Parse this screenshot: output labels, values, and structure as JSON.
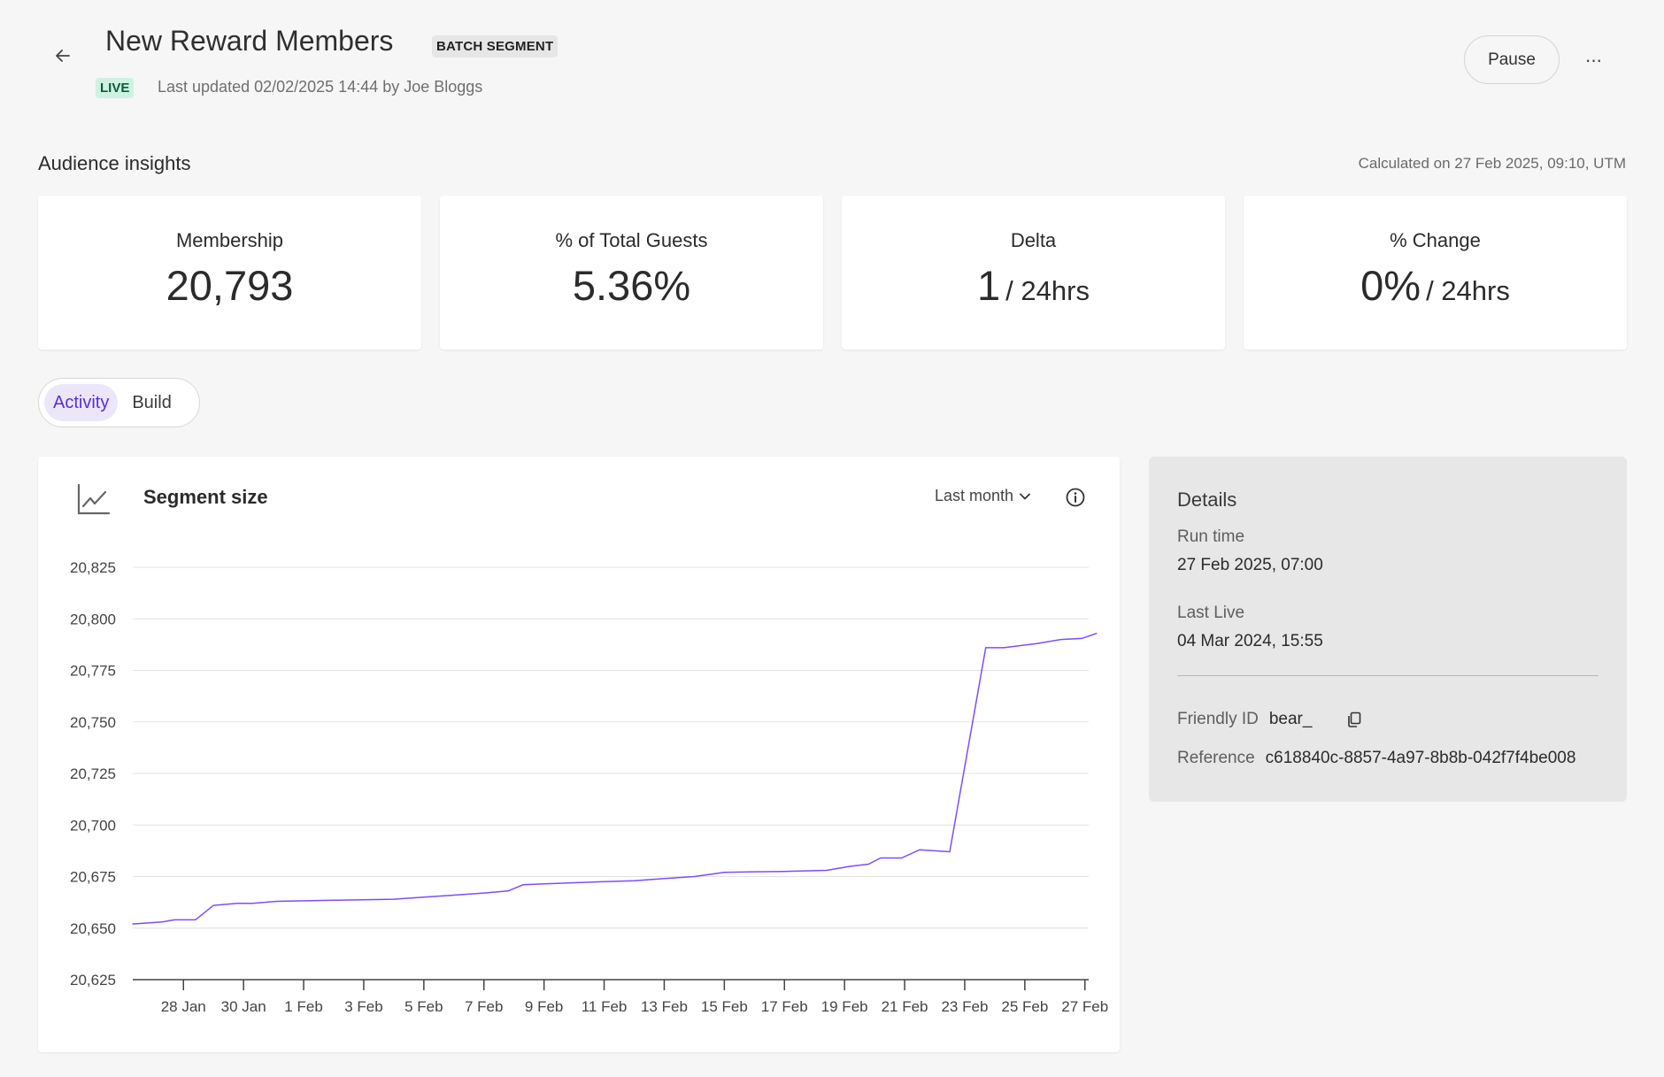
{
  "header": {
    "title": "New Reward Members",
    "type_badge": "BATCH SEGMENT",
    "status_badge": "LIVE",
    "last_updated": "Last updated 02/02/2025 14:44 by Joe Bloggs",
    "pause_label": "Pause",
    "more_label": "···"
  },
  "insights": {
    "title": "Audience insights",
    "calculated_note": "Calculated on 27 Feb 2025, 09:10, UTM",
    "cards": [
      {
        "label": "Membership",
        "value": "20,793",
        "suffix": ""
      },
      {
        "label": "% of Total Guests",
        "value": "5.36%",
        "suffix": ""
      },
      {
        "label": "Delta",
        "value": "1",
        "suffix": "/ 24hrs"
      },
      {
        "label": "% Change",
        "value": "0%",
        "suffix": "/ 24hrs"
      }
    ]
  },
  "tabs": [
    {
      "label": "Activity",
      "active": true
    },
    {
      "label": "Build",
      "active": false
    }
  ],
  "chart": {
    "title": "Segment size",
    "range_label": "Last month"
  },
  "details": {
    "title": "Details",
    "run_time_label": "Run time",
    "run_time_value": "27 Feb 2025, 07:00",
    "last_live_label": "Last Live",
    "last_live_value": "04 Mar 2024, 15:55",
    "friendly_id_label": "Friendly ID",
    "friendly_id_value": "bear_",
    "reference_label": "Reference",
    "reference_value": "c618840c-8857-4a97-8b8b-042f7f4be008"
  },
  "colors": {
    "accent": "#7c4dff",
    "live_bg": "#cdf2e2",
    "active_tab_bg": "#ece6fb",
    "active_tab_text": "#5a2fd1"
  },
  "chart_data": {
    "type": "line",
    "title": "Segment size",
    "xlabel": "",
    "ylabel": "",
    "ylim": [
      20625,
      20825
    ],
    "yticks": [
      20625,
      20650,
      20675,
      20700,
      20725,
      20750,
      20775,
      20800,
      20825
    ],
    "ytick_labels": [
      "20,625",
      "20,650",
      "20,675",
      "20,700",
      "20,725",
      "20,750",
      "20,775",
      "20,800",
      "20,825"
    ],
    "x_start": "2025-01-27",
    "xtick_labels": [
      "28 Jan",
      "30 Jan",
      "1 Feb",
      "3 Feb",
      "5 Feb",
      "7 Feb",
      "9 Feb",
      "11 Feb",
      "13 Feb",
      "15 Feb",
      "17 Feb",
      "19 Feb",
      "21 Feb",
      "23 Feb",
      "25 Feb",
      "27 Feb"
    ],
    "grid": true,
    "series": [
      {
        "color": "#7c4dff",
        "x": [
          -0.7,
          0.3,
          0.7,
          1.4,
          2.0,
          2.8,
          3.3,
          4.1,
          6.0,
          8.0,
          9.0,
          10.0,
          11.0,
          11.8,
          12.3,
          13.0,
          14.0,
          15.0,
          16.0,
          17.0,
          18.0,
          19.0,
          20.0,
          21.0,
          22.4,
          23.2,
          23.8,
          24.2,
          24.9,
          25.5,
          26.5,
          27.7,
          28.3,
          29.4,
          30.2,
          30.9,
          31.4
        ],
        "y": [
          20652,
          20653,
          20654,
          20654,
          20661,
          20662,
          20662,
          20663,
          20663.5,
          20664,
          20665,
          20666,
          20667,
          20668,
          20671,
          20671.5,
          20672,
          20672.5,
          20673,
          20674,
          20675,
          20677,
          20677.3,
          20677.5,
          20678,
          20680,
          20681,
          20684,
          20684,
          20688,
          20687,
          20786,
          20786,
          20788,
          20790,
          20790.5,
          20793
        ]
      }
    ]
  }
}
